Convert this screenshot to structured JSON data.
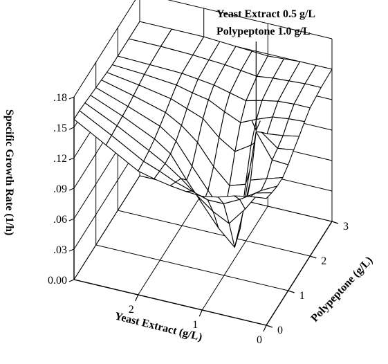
{
  "chart_data": {
    "type": "surface3d",
    "title": "",
    "xlabel": "Yeast Extract (g/L)",
    "ylabel": "Polypeptone (g/L)",
    "zlabel": "Specific Growth Rate (1/h)",
    "xlim": [
      0,
      3
    ],
    "ylim": [
      0,
      3
    ],
    "zlim": [
      0,
      0.18
    ],
    "x_ticks": [
      "0",
      "1",
      "2"
    ],
    "y_ticks": [
      "0",
      "1",
      "2",
      "3"
    ],
    "z_ticks": [
      "0.00",
      ".03",
      ".06",
      ".09",
      ".12",
      ".15",
      ".18"
    ],
    "grid": true,
    "annotation": {
      "lines": [
        "Yeast Extract 0.5 g/L",
        "Polypeptone 1.0 g/L"
      ],
      "point": {
        "yeast_extract": 0.5,
        "polypeptone": 1.0,
        "rate": 0.149
      }
    },
    "surface": {
      "yeast_extract": [
        3.0,
        2.5,
        2.0,
        1.75,
        1.5,
        1.25,
        1.0,
        0.75,
        0.5,
        0.25,
        0.0
      ],
      "polypeptone": [
        0.0,
        0.25,
        0.5,
        0.75,
        1.0,
        1.25,
        1.5,
        1.75,
        2.0,
        2.5,
        3.0
      ],
      "rate": [
        [
          0.158,
          0.158,
          0.157,
          0.156,
          0.155,
          0.154,
          0.153,
          0.152,
          0.152,
          0.152,
          0.152
        ],
        [
          0.14,
          0.141,
          0.142,
          0.143,
          0.144,
          0.146,
          0.148,
          0.15,
          0.151,
          0.152,
          0.152
        ],
        [
          0.122,
          0.123,
          0.125,
          0.128,
          0.132,
          0.137,
          0.142,
          0.147,
          0.15,
          0.151,
          0.152
        ],
        [
          0.118,
          0.117,
          0.116,
          0.117,
          0.121,
          0.128,
          0.136,
          0.143,
          0.148,
          0.15,
          0.151
        ],
        [
          0.115,
          0.11,
          0.105,
          0.095,
          0.1,
          0.115,
          0.13,
          0.14,
          0.146,
          0.149,
          0.15
        ],
        [
          0.113,
          0.105,
          0.092,
          0.075,
          0.08,
          0.095,
          0.115,
          0.132,
          0.142,
          0.147,
          0.149
        ],
        [
          0.112,
          0.1,
          0.08,
          0.055,
          0.06,
          0.08,
          0.105,
          0.125,
          0.138,
          0.145,
          0.148
        ],
        [
          0.115,
          0.1,
          0.072,
          0.04,
          0.05,
          0.085,
          0.115,
          0.132,
          0.142,
          0.147,
          0.149
        ],
        [
          0.12,
          0.108,
          0.09,
          0.11,
          0.149,
          0.14,
          0.13,
          0.138,
          0.145,
          0.148,
          0.15
        ],
        [
          0.123,
          0.118,
          0.112,
          0.115,
          0.125,
          0.128,
          0.132,
          0.14,
          0.146,
          0.149,
          0.15
        ],
        [
          0.125,
          0.122,
          0.12,
          0.12,
          0.124,
          0.13,
          0.135,
          0.141,
          0.146,
          0.149,
          0.15
        ]
      ]
    }
  }
}
